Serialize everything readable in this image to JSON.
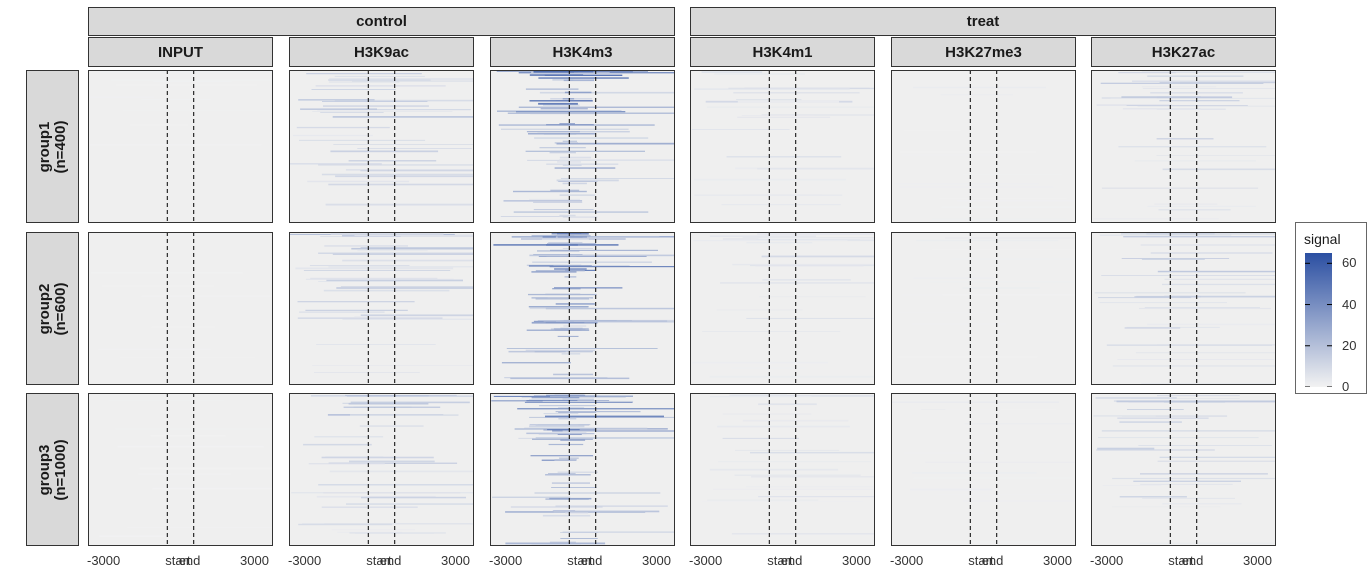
{
  "chart_data": {
    "type": "heatmap",
    "title": "",
    "column_groups": [
      {
        "label": "control",
        "columns": [
          "INPUT",
          "H3K9ac",
          "H3K4m3"
        ]
      },
      {
        "label": "treat",
        "columns": [
          "H3K4m1",
          "H3K27me3",
          "H3K27ac"
        ]
      }
    ],
    "columns": [
      "INPUT",
      "H3K9ac",
      "H3K4m3",
      "H3K4m1",
      "H3K27me3",
      "H3K27ac"
    ],
    "rows": [
      {
        "name": "group1",
        "count_label": "(n=400)",
        "n": 400
      },
      {
        "name": "group2",
        "count_label": "(n=600)",
        "n": 600
      },
      {
        "name": "group3",
        "count_label": "(n=1000)",
        "n": 1000
      }
    ],
    "x_ticks": [
      "-3000",
      "start",
      "end",
      "3000"
    ],
    "x_tick_positions": [
      -3000,
      0,
      1000,
      4000
    ],
    "x_range": [
      -3000,
      4000
    ],
    "marker_lines_at": [
      0,
      1000
    ],
    "legend": {
      "title": "signal",
      "ticks": [
        "0",
        "20",
        "40",
        "60"
      ],
      "range": [
        0,
        65
      ],
      "low_color": "#f2f2f2",
      "high_color": "#2b4fa2",
      "placement": "right"
    },
    "signal_level": {
      "INPUT": 0.02,
      "H3K9ac": 0.35,
      "H3K4m3": 0.85,
      "H3K4m1": 0.18,
      "H3K27me3": 0.05,
      "H3K27ac": 0.3
    },
    "colors": {
      "panel_bg": "#efefef",
      "strip_bg": "#d9d9d9",
      "border": "#333333",
      "marker_line": "#000000"
    }
  }
}
